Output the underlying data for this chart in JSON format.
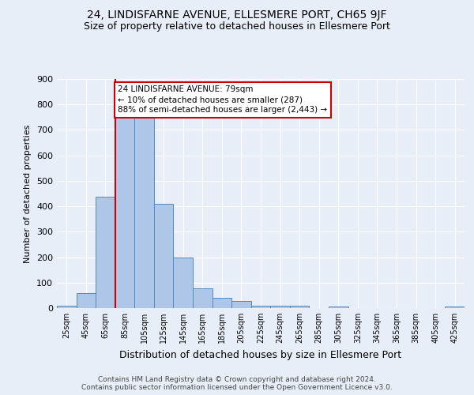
{
  "title": "24, LINDISFARNE AVENUE, ELLESMERE PORT, CH65 9JF",
  "subtitle": "Size of property relative to detached houses in Ellesmere Port",
  "xlabel": "Distribution of detached houses by size in Ellesmere Port",
  "ylabel": "Number of detached properties",
  "footer_line1": "Contains HM Land Registry data © Crown copyright and database right 2024.",
  "footer_line2": "Contains public sector information licensed under the Open Government Licence v3.0.",
  "bar_labels": [
    "25sqm",
    "45sqm",
    "65sqm",
    "85sqm",
    "105sqm",
    "125sqm",
    "145sqm",
    "165sqm",
    "185sqm",
    "205sqm",
    "225sqm",
    "245sqm",
    "265sqm",
    "285sqm",
    "305sqm",
    "325sqm",
    "345sqm",
    "365sqm",
    "385sqm",
    "405sqm",
    "425sqm"
  ],
  "bar_values": [
    10,
    60,
    437,
    750,
    750,
    410,
    200,
    77,
    40,
    27,
    10,
    8,
    10,
    0,
    5,
    0,
    0,
    0,
    0,
    0,
    5
  ],
  "bar_color": "#aec6e8",
  "bar_edgecolor": "#5588bb",
  "vline_color": "#cc0000",
  "annotation_text": "24 LINDISFARNE AVENUE: 79sqm\n← 10% of detached houses are smaller (287)\n88% of semi-detached houses are larger (2,443) →",
  "annotation_box_color": "#cc0000",
  "ylim": [
    0,
    900
  ],
  "yticks": [
    0,
    100,
    200,
    300,
    400,
    500,
    600,
    700,
    800,
    900
  ],
  "bg_color": "#e8eef8",
  "plot_bg_color": "#e8eef8",
  "grid_color": "#ffffff",
  "title_fontsize": 10,
  "subtitle_fontsize": 9,
  "ylabel_fontsize": 8,
  "xlabel_fontsize": 9,
  "tick_fontsize": 7,
  "footer_fontsize": 6.5
}
